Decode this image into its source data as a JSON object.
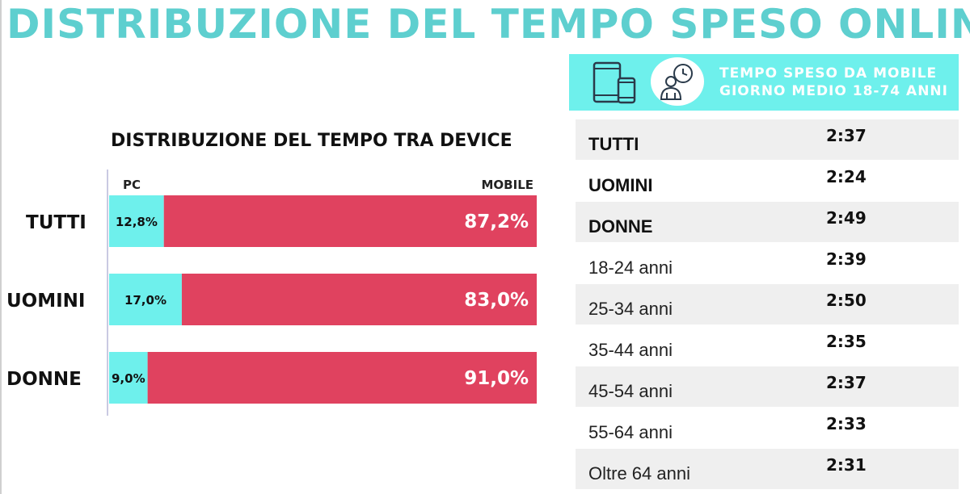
{
  "title": "DISTRIBUZIONE DEL TEMPO SPESO ONLINE",
  "chart_data": {
    "type": "bar",
    "title": "DISTRIBUZIONE DEL TEMPO TRA DEVICE",
    "stacked": true,
    "orientation": "horizontal",
    "categories": [
      "TUTTI",
      "UOMINI",
      "DONNE"
    ],
    "series": [
      {
        "name": "PC",
        "values": [
          12.8,
          17.0,
          9.0
        ],
        "labels": [
          "12,8%",
          "17,0%",
          "9,0%"
        ],
        "color": "#6ef0ec"
      },
      {
        "name": "MOBILE",
        "values": [
          87.2,
          83.0,
          91.0
        ],
        "labels": [
          "87,2%",
          "83,0%",
          "91,0%"
        ],
        "color": "#e0425f"
      }
    ],
    "xlim": [
      0,
      100
    ],
    "legend": "top"
  },
  "mobile_time": {
    "header_line1": "TEMPO SPESO DA MOBILE",
    "header_line2": "GIORNO MEDIO 18-74 ANNI",
    "icons": [
      "devices-icon",
      "user-clock-icon"
    ],
    "rows": [
      {
        "label": "TUTTI",
        "value": "2:37",
        "bold": true
      },
      {
        "label": "UOMINI",
        "value": "2:24",
        "bold": true
      },
      {
        "label": "DONNE",
        "value": "2:49",
        "bold": true
      },
      {
        "label": "18-24 anni",
        "value": "2:39",
        "bold": false
      },
      {
        "label": "25-34 anni",
        "value": "2:50",
        "bold": false
      },
      {
        "label": "35-44 anni",
        "value": "2:35",
        "bold": false
      },
      {
        "label": "45-54 anni",
        "value": "2:37",
        "bold": false
      },
      {
        "label": "55-64 anni",
        "value": "2:33",
        "bold": false
      },
      {
        "label": "Oltre 64 anni",
        "value": "2:31",
        "bold": false
      }
    ]
  },
  "colors": {
    "accent": "#5ecfcf",
    "pc": "#6ef0ec",
    "mobile": "#e0425f",
    "row_shade": "#efefef"
  }
}
